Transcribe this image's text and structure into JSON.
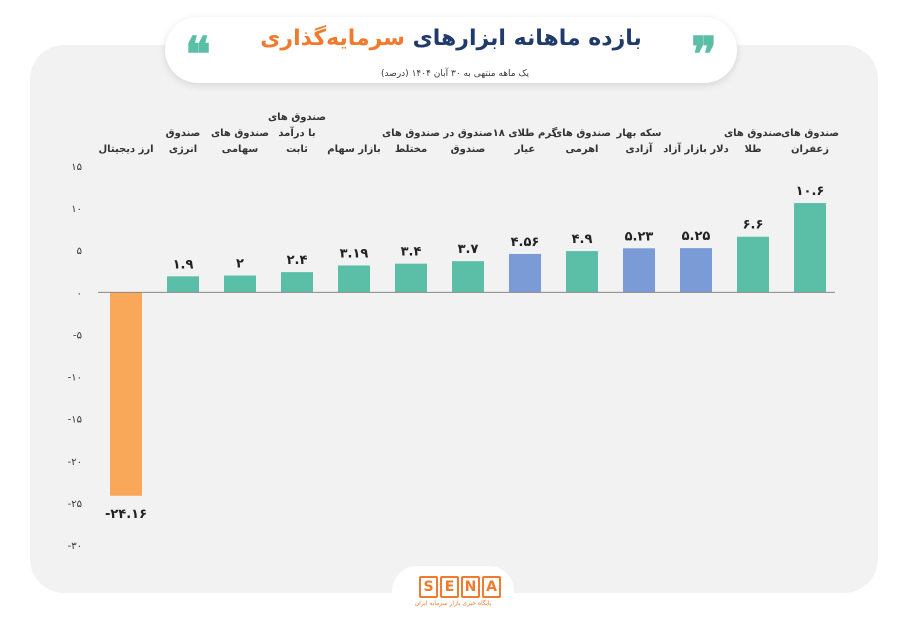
{
  "header": {
    "title_main": "بازده ماهانه ابزارهای ",
    "title_highlight": "سرمایه‌گذاری",
    "quote_left": "❝",
    "quote_right": "❞",
    "subtitle": "یک ماهه منتهی به ۳۰ آبان ۱۴۰۴ (درصد)"
  },
  "brand": {
    "letters": [
      "S",
      "E",
      "N",
      "A"
    ],
    "tagline": "پایگاه خبری بازار سرمایه ایران"
  },
  "colors": {
    "teal": "#5bbfa8",
    "blue": "#7b9bd6",
    "orange": "#f9a85a",
    "title_blue": "#1f3a6b",
    "title_orange": "#f07a2d"
  },
  "chart_data": {
    "type": "bar",
    "ylim": [
      -30,
      15
    ],
    "yticks": [
      15,
      10,
      5,
      0,
      -5,
      -10,
      -15,
      -20,
      -25,
      -30
    ],
    "ytick_labels": [
      "۱۵",
      "۱۰",
      "۵",
      "۰",
      "-۵",
      "-۱۰",
      "-۱۵",
      "-۲۰",
      "-۲۵",
      "-۳۰"
    ],
    "categories": [
      [
        "ارز دیجیتال"
      ],
      [
        "صندوق",
        "انرژی"
      ],
      [
        "صندوق های",
        "سهامی"
      ],
      [
        "صندوق های",
        "با درآمد",
        "ثابت"
      ],
      [
        "بازار سهام"
      ],
      [
        "صندوق های",
        "مختلط"
      ],
      [
        "صندوق در",
        "صندوق"
      ],
      [
        "گرم طلای ۱۸",
        "عیار"
      ],
      [
        "صندوق های",
        "اهرمی"
      ],
      [
        "سکه بهار",
        "آزادی"
      ],
      [
        "دلار بازار آزاد"
      ],
      [
        "صندوق های",
        "طلا"
      ],
      [
        "صندوق های",
        "زعفران"
      ]
    ],
    "values": [
      -24.16,
      1.9,
      2,
      2.4,
      3.19,
      3.4,
      3.7,
      4.56,
      4.9,
      5.23,
      5.25,
      6.6,
      10.6
    ],
    "value_labels": [
      "-۲۴.۱۶",
      "۱.۹",
      "۲",
      "۲.۴",
      "۳.۱۹",
      "۳.۴",
      "۳.۷",
      "۴.۵۶",
      "۴.۹",
      "۵.۲۳",
      "۵.۲۵",
      "۶.۶",
      "۱۰.۶"
    ],
    "bar_colors": [
      "#f9a85a",
      "#5bbfa8",
      "#5bbfa8",
      "#5bbfa8",
      "#5bbfa8",
      "#5bbfa8",
      "#5bbfa8",
      "#7b9bd6",
      "#5bbfa8",
      "#7b9bd6",
      "#7b9bd6",
      "#5bbfa8",
      "#5bbfa8"
    ],
    "grid": false,
    "legend": "none"
  }
}
